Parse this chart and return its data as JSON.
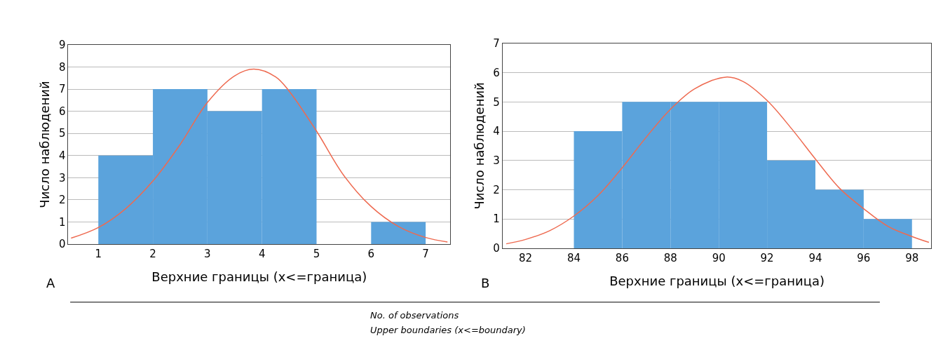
{
  "chart_data": [
    {
      "type": "histogram",
      "xlabel": "Верхние границы (x<=граница)",
      "ylabel": "Число наблюдений",
      "bins": [
        1,
        2,
        3,
        4,
        5,
        6,
        7
      ],
      "values": [
        4,
        7,
        6,
        7,
        0,
        1
      ],
      "color": "#5ba3dc",
      "xlim": [
        0.45,
        7.45
      ],
      "ylim": [
        0,
        9
      ],
      "xticks": [
        1,
        2,
        3,
        4,
        5,
        6,
        7
      ],
      "yticks": [
        0,
        1,
        2,
        3,
        4,
        5,
        6,
        7,
        8,
        9
      ],
      "grid": "y",
      "series": [
        {
          "type": "line",
          "color": "#ee6a50",
          "x": [
            0.5,
            1,
            1.5,
            2,
            2.5,
            3,
            3.5,
            3.85,
            4.25,
            4.5,
            5,
            5.5,
            6,
            6.5,
            7,
            7.4
          ],
          "values": [
            0.27,
            0.75,
            1.6,
            2.85,
            4.5,
            6.4,
            7.6,
            7.9,
            7.55,
            6.9,
            5.1,
            3.1,
            1.7,
            0.8,
            0.3,
            0.1
          ]
        }
      ],
      "annotations": [
        "A",
        "No. of observations",
        "Upper boundaries (x<=boundary)"
      ]
    },
    {
      "type": "histogram",
      "xlabel": "Верхние границы (x<=граница)",
      "ylabel": "Число наблюдений",
      "bins": [
        84,
        86,
        88,
        90,
        92,
        94,
        96,
        98
      ],
      "values": [
        4,
        5,
        5,
        5,
        3,
        2,
        1
      ],
      "color": "#5ba3dc",
      "xlim": [
        81.05,
        98.8
      ],
      "ylim": [
        0,
        7
      ],
      "xticks": [
        82,
        84,
        86,
        88,
        90,
        92,
        94,
        96,
        98
      ],
      "yticks": [
        0,
        1,
        2,
        3,
        4,
        5,
        6,
        7
      ],
      "grid": "y",
      "series": [
        {
          "type": "line",
          "color": "#ee6a50",
          "x": [
            81.2,
            82,
            83,
            84,
            85,
            86,
            87,
            88,
            89,
            90.3,
            91,
            92,
            93,
            94,
            95,
            96,
            97,
            98,
            98.7
          ],
          "values": [
            0.15,
            0.3,
            0.6,
            1.1,
            1.8,
            2.75,
            3.8,
            4.75,
            5.45,
            5.85,
            5.7,
            5.05,
            4.1,
            3.05,
            2.05,
            1.35,
            0.75,
            0.4,
            0.2
          ]
        }
      ],
      "annotations": [
        "B"
      ]
    }
  ]
}
